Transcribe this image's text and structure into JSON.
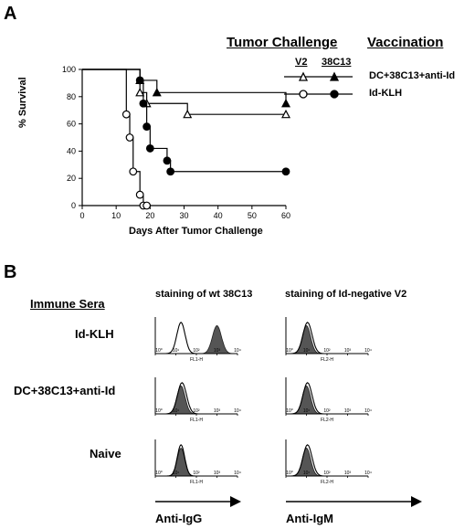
{
  "panel_a": {
    "letter": "A",
    "header_tumor": "Tumor Challenge",
    "header_vaccination": "Vaccination",
    "sub_v2": "V2",
    "sub_38c13": "38C13",
    "legend": [
      {
        "label": "DC+38C13+anti-Id",
        "v2_marker": "open-triangle",
        "c13_marker": "filled-triangle"
      },
      {
        "label": "Id-KLH",
        "v2_marker": "open-circle",
        "c13_marker": "filled-circle"
      }
    ]
  },
  "panel_b": {
    "letter": "B",
    "immune_sera": "Immune Sera",
    "col1": "staining of wt 38C13",
    "col2": "staining of Id-negative V2",
    "rows": [
      "Id-KLH",
      "DC+38C13+anti-Id",
      "Naive"
    ],
    "anti_igg": "Anti-IgG",
    "anti_igm": "Anti-IgM",
    "hist_ticks": [
      "10⁰",
      "10¹",
      "10²",
      "10³",
      "10⁴"
    ],
    "fl1": "FL1-H",
    "fl2": "FL2-H"
  },
  "chart_data": {
    "type": "line",
    "title": "",
    "xlabel": "Days After Tumor Challenge",
    "ylabel": "% Survival",
    "xlim": [
      0,
      60
    ],
    "ylim": [
      0,
      100
    ],
    "xticks": [
      0,
      10,
      20,
      30,
      40,
      50,
      60
    ],
    "yticks": [
      0,
      20,
      40,
      60,
      80,
      100
    ],
    "series": [
      {
        "name": "DC+38C13+anti-Id / V2",
        "marker": "open-triangle",
        "x": [
          0,
          17,
          19,
          31,
          60
        ],
        "y": [
          100,
          83,
          75,
          67,
          67
        ]
      },
      {
        "name": "DC+38C13+anti-Id / 38C13",
        "marker": "filled-triangle",
        "x": [
          0,
          17,
          22,
          60
        ],
        "y": [
          100,
          92,
          83,
          75
        ]
      },
      {
        "name": "Id-KLH / V2",
        "marker": "open-circle",
        "x": [
          0,
          13,
          14,
          15,
          17,
          18,
          19
        ],
        "y": [
          100,
          67,
          50,
          25,
          8,
          0,
          0
        ]
      },
      {
        "name": "Id-KLH / 38C13",
        "marker": "filled-circle",
        "x": [
          0,
          17,
          18,
          19,
          20,
          25,
          26,
          60
        ],
        "y": [
          100,
          92,
          75,
          58,
          42,
          33,
          25,
          25
        ]
      }
    ]
  }
}
